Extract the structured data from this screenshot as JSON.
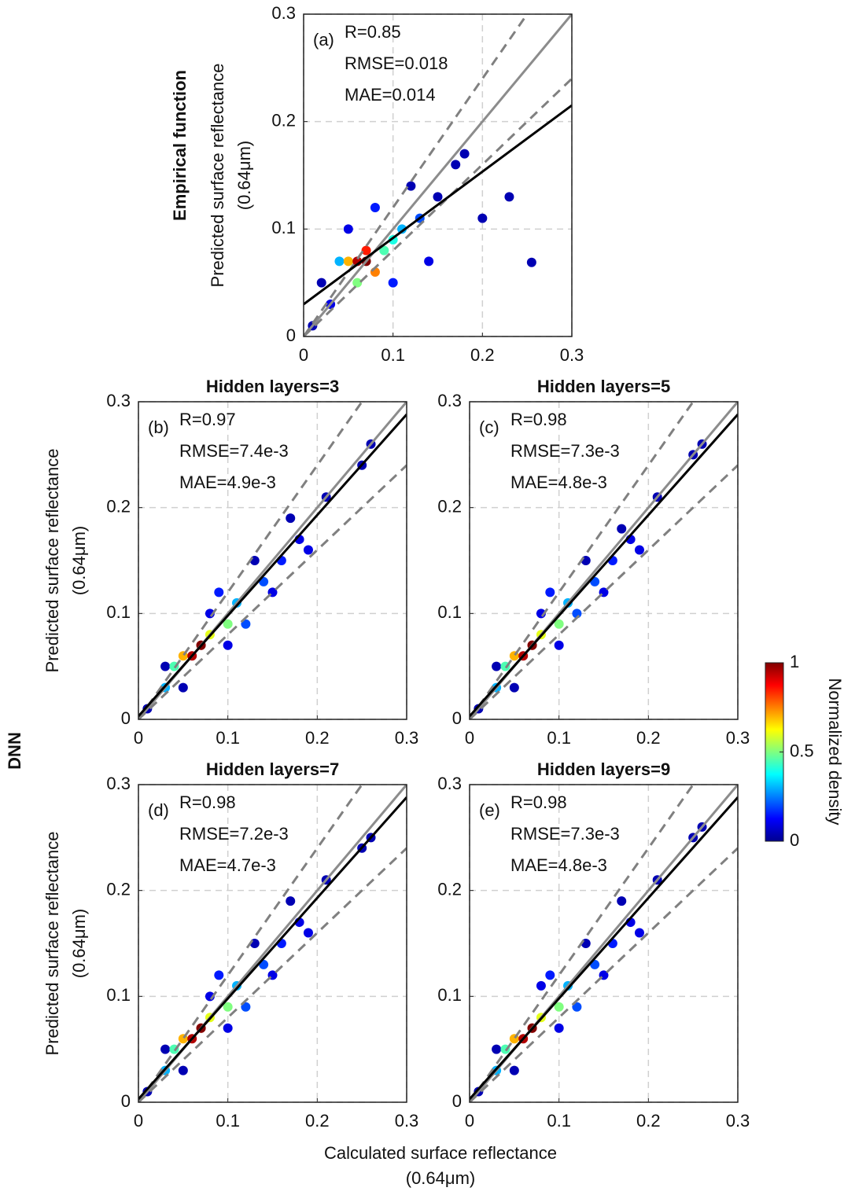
{
  "chart_data": [
    {
      "type": "scatter",
      "panel": "(a)",
      "ylabel": [
        "Predicted surface reflectance",
        "(0.64μm)"
      ],
      "stats": [
        "R=0.85",
        "RMSE=0.018",
        "MAE=0.014"
      ],
      "xlim": [
        0,
        0.3
      ],
      "ylim": [
        0,
        0.3
      ],
      "xticks": [
        0,
        0.1,
        0.2,
        0.3
      ],
      "yticks": [
        0,
        0.1,
        0.2,
        0.3
      ],
      "grid": true,
      "x": [
        0.01,
        0.02,
        0.03,
        0.05,
        0.08,
        0.12,
        0.15,
        0.17,
        0.2,
        0.23,
        0.255,
        0.18,
        0.14,
        0.1,
        0.04,
        0.11,
        0.13,
        0.09,
        0.06,
        0.1,
        0.05,
        0.08,
        0.07,
        0.06,
        0.07
      ],
      "y": [
        0.01,
        0.05,
        0.03,
        0.1,
        0.12,
        0.14,
        0.13,
        0.16,
        0.11,
        0.13,
        0.069,
        0.17,
        0.07,
        0.05,
        0.07,
        0.1,
        0.11,
        0.08,
        0.05,
        0.09,
        0.07,
        0.06,
        0.08,
        0.07,
        0.07
      ],
      "density": [
        0.05,
        0.05,
        0.1,
        0.1,
        0.15,
        0.05,
        0.05,
        0.05,
        0.05,
        0.05,
        0.05,
        0.05,
        0.1,
        0.15,
        0.3,
        0.3,
        0.2,
        0.45,
        0.5,
        0.4,
        0.7,
        0.75,
        0.85,
        0.95,
        1
      ],
      "lines": [
        {
          "slope": 1,
          "intercept": 0,
          "color": "#8c8c8c",
          "dashed": false
        },
        {
          "slope": 1.2,
          "intercept": 0,
          "color": "#808080",
          "dashed": true
        },
        {
          "slope": 0.8,
          "intercept": 0,
          "color": "#808080",
          "dashed": true
        },
        {
          "slope": 0.617,
          "intercept": 0.03,
          "color": "#000000",
          "dashed": false
        }
      ]
    },
    {
      "type": "scatter",
      "panel": "(b)",
      "title": "Hidden layers=3",
      "ylabel": [
        "Predicted surface reflectance",
        "(0.64μm)"
      ],
      "stats": [
        "R=0.97",
        "RMSE=7.4e-3",
        "MAE=4.9e-3"
      ],
      "xlim": [
        0,
        0.3
      ],
      "ylim": [
        0,
        0.3
      ],
      "xticks": [
        0,
        0.1,
        0.2,
        0.3
      ],
      "yticks": [
        0,
        0.1,
        0.2,
        0.3
      ],
      "grid": true,
      "x": [
        0.01,
        0.03,
        0.05,
        0.08,
        0.1,
        0.13,
        0.15,
        0.17,
        0.19,
        0.21,
        0.26,
        0.25,
        0.12,
        0.09,
        0.16,
        0.18,
        0.03,
        0.11,
        0.14,
        0.04,
        0.08,
        0.1,
        0.05,
        0.07,
        0.06,
        0.07
      ],
      "y": [
        0.01,
        0.05,
        0.03,
        0.1,
        0.07,
        0.15,
        0.12,
        0.19,
        0.16,
        0.21,
        0.26,
        0.24,
        0.09,
        0.12,
        0.15,
        0.17,
        0.03,
        0.11,
        0.13,
        0.05,
        0.08,
        0.09,
        0.06,
        0.07,
        0.06,
        0.07
      ],
      "density": [
        0.05,
        0.05,
        0.05,
        0.1,
        0.1,
        0.05,
        0.1,
        0.05,
        0.1,
        0.05,
        0.05,
        0.05,
        0.2,
        0.15,
        0.15,
        0.1,
        0.3,
        0.3,
        0.2,
        0.45,
        0.6,
        0.5,
        0.7,
        0.85,
        0.95,
        1
      ],
      "lines": [
        {
          "slope": 1,
          "intercept": 0,
          "color": "#8c8c8c",
          "dashed": false
        },
        {
          "slope": 1.2,
          "intercept": 0,
          "color": "#808080",
          "dashed": true
        },
        {
          "slope": 0.8,
          "intercept": 0,
          "color": "#808080",
          "dashed": true
        },
        {
          "slope": 0.95,
          "intercept": 0.003,
          "color": "#000000",
          "dashed": false
        }
      ]
    },
    {
      "type": "scatter",
      "panel": "(c)",
      "title": "Hidden layers=5",
      "stats": [
        "R=0.98",
        "RMSE=7.3e-3",
        "MAE=4.8e-3"
      ],
      "xlim": [
        0,
        0.3
      ],
      "ylim": [
        0,
        0.3
      ],
      "xticks": [
        0,
        0.1,
        0.2,
        0.3
      ],
      "yticks": [
        0,
        0.1,
        0.2,
        0.3
      ],
      "grid": true,
      "x": [
        0.01,
        0.03,
        0.05,
        0.08,
        0.1,
        0.13,
        0.15,
        0.17,
        0.19,
        0.21,
        0.26,
        0.25,
        0.12,
        0.09,
        0.16,
        0.18,
        0.03,
        0.11,
        0.14,
        0.04,
        0.08,
        0.1,
        0.05,
        0.07,
        0.06,
        0.07
      ],
      "y": [
        0.01,
        0.05,
        0.03,
        0.1,
        0.07,
        0.15,
        0.12,
        0.18,
        0.16,
        0.21,
        0.26,
        0.25,
        0.1,
        0.12,
        0.15,
        0.17,
        0.03,
        0.11,
        0.13,
        0.05,
        0.08,
        0.09,
        0.06,
        0.07,
        0.06,
        0.07
      ],
      "density": [
        0.05,
        0.05,
        0.05,
        0.1,
        0.1,
        0.05,
        0.1,
        0.05,
        0.1,
        0.05,
        0.05,
        0.05,
        0.2,
        0.15,
        0.15,
        0.1,
        0.3,
        0.3,
        0.2,
        0.45,
        0.6,
        0.5,
        0.7,
        0.85,
        0.95,
        1
      ],
      "lines": [
        {
          "slope": 1,
          "intercept": 0,
          "color": "#8c8c8c",
          "dashed": false
        },
        {
          "slope": 1.2,
          "intercept": 0,
          "color": "#808080",
          "dashed": true
        },
        {
          "slope": 0.8,
          "intercept": 0,
          "color": "#808080",
          "dashed": true
        },
        {
          "slope": 0.95,
          "intercept": 0.003,
          "color": "#000000",
          "dashed": false
        }
      ]
    },
    {
      "type": "scatter",
      "panel": "(d)",
      "title": "Hidden layers=7",
      "ylabel": [
        "Predicted surface reflectance",
        "(0.64μm)"
      ],
      "stats": [
        "R=0.98",
        "RMSE=7.2e-3",
        "MAE=4.7e-3"
      ],
      "xlim": [
        0,
        0.3
      ],
      "ylim": [
        0,
        0.3
      ],
      "xticks": [
        0,
        0.1,
        0.2,
        0.3
      ],
      "yticks": [
        0,
        0.1,
        0.2,
        0.3
      ],
      "grid": true,
      "x": [
        0.01,
        0.03,
        0.05,
        0.08,
        0.1,
        0.13,
        0.15,
        0.17,
        0.19,
        0.21,
        0.26,
        0.25,
        0.12,
        0.09,
        0.16,
        0.18,
        0.03,
        0.11,
        0.14,
        0.04,
        0.08,
        0.1,
        0.05,
        0.07,
        0.06,
        0.07
      ],
      "y": [
        0.01,
        0.05,
        0.03,
        0.1,
        0.07,
        0.15,
        0.12,
        0.19,
        0.16,
        0.21,
        0.25,
        0.24,
        0.09,
        0.12,
        0.15,
        0.17,
        0.03,
        0.11,
        0.13,
        0.05,
        0.08,
        0.09,
        0.06,
        0.07,
        0.06,
        0.07
      ],
      "density": [
        0.05,
        0.05,
        0.05,
        0.1,
        0.1,
        0.05,
        0.1,
        0.05,
        0.1,
        0.05,
        0.05,
        0.05,
        0.2,
        0.15,
        0.15,
        0.1,
        0.3,
        0.3,
        0.2,
        0.45,
        0.6,
        0.5,
        0.7,
        0.85,
        0.95,
        1
      ],
      "lines": [
        {
          "slope": 1,
          "intercept": 0,
          "color": "#8c8c8c",
          "dashed": false
        },
        {
          "slope": 1.2,
          "intercept": 0,
          "color": "#808080",
          "dashed": true
        },
        {
          "slope": 0.8,
          "intercept": 0,
          "color": "#808080",
          "dashed": true
        },
        {
          "slope": 0.95,
          "intercept": 0.003,
          "color": "#000000",
          "dashed": false
        }
      ]
    },
    {
      "type": "scatter",
      "panel": "(e)",
      "title": "Hidden layers=9",
      "stats": [
        "R=0.98",
        "RMSE=7.3e-3",
        "MAE=4.8e-3"
      ],
      "xlim": [
        0,
        0.3
      ],
      "ylim": [
        0,
        0.3
      ],
      "xticks": [
        0,
        0.1,
        0.2,
        0.3
      ],
      "yticks": [
        0,
        0.1,
        0.2,
        0.3
      ],
      "grid": true,
      "x": [
        0.01,
        0.03,
        0.05,
        0.08,
        0.1,
        0.13,
        0.15,
        0.17,
        0.19,
        0.21,
        0.26,
        0.25,
        0.12,
        0.09,
        0.16,
        0.18,
        0.03,
        0.11,
        0.14,
        0.04,
        0.08,
        0.1,
        0.05,
        0.07,
        0.06,
        0.07
      ],
      "y": [
        0.01,
        0.05,
        0.03,
        0.11,
        0.07,
        0.15,
        0.12,
        0.19,
        0.16,
        0.21,
        0.26,
        0.25,
        0.09,
        0.12,
        0.15,
        0.17,
        0.03,
        0.11,
        0.13,
        0.05,
        0.08,
        0.09,
        0.06,
        0.07,
        0.06,
        0.07
      ],
      "density": [
        0.05,
        0.05,
        0.05,
        0.1,
        0.1,
        0.05,
        0.1,
        0.05,
        0.1,
        0.05,
        0.05,
        0.05,
        0.2,
        0.15,
        0.15,
        0.1,
        0.3,
        0.3,
        0.2,
        0.45,
        0.6,
        0.5,
        0.7,
        0.85,
        0.95,
        1
      ],
      "lines": [
        {
          "slope": 1,
          "intercept": 0,
          "color": "#8c8c8c",
          "dashed": false
        },
        {
          "slope": 1.2,
          "intercept": 0,
          "color": "#808080",
          "dashed": true
        },
        {
          "slope": 0.8,
          "intercept": 0,
          "color": "#808080",
          "dashed": true
        },
        {
          "slope": 0.95,
          "intercept": 0.003,
          "color": "#000000",
          "dashed": false
        }
      ]
    }
  ],
  "row_labels": [
    "Empirical function",
    "DNN"
  ],
  "xlabel": [
    "Calculated surface reflectance",
    "(0.64μm)"
  ],
  "colorbar": {
    "label": "Normalized density",
    "lim": [
      0,
      1
    ],
    "ticks": [
      0,
      0.5,
      1
    ]
  }
}
